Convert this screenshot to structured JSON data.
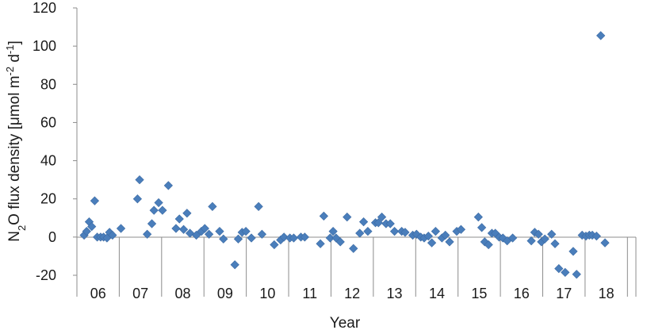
{
  "chart_data": {
    "type": "scatter",
    "xlabel": "Year",
    "ylabel": {
      "parts": [
        {
          "text": "N",
          "sub": false
        },
        {
          "text": "2",
          "sub": true
        },
        {
          "text": "O flux density [μmol m",
          "sub": false
        },
        {
          "text": "-2",
          "sup": true
        },
        {
          "text": " d",
          "sub": false
        },
        {
          "text": "-1",
          "sup": true
        },
        {
          "text": "]",
          "sub": false
        }
      ]
    },
    "ylim": [
      -20,
      120
    ],
    "yticks": [
      -20,
      0,
      20,
      40,
      60,
      80,
      100,
      120
    ],
    "xlim": [
      5.5,
      18.7
    ],
    "xticks": [
      {
        "value": 6,
        "label": "06"
      },
      {
        "value": 7,
        "label": "07"
      },
      {
        "value": 8,
        "label": "08"
      },
      {
        "value": 9,
        "label": "09"
      },
      {
        "value": 10,
        "label": "10"
      },
      {
        "value": 11,
        "label": "11"
      },
      {
        "value": 12,
        "label": "12"
      },
      {
        "value": 13,
        "label": "13"
      },
      {
        "value": 14,
        "label": "14"
      },
      {
        "value": 15,
        "label": "15"
      },
      {
        "value": 16,
        "label": "16"
      },
      {
        "value": 17,
        "label": "17"
      },
      {
        "value": 18,
        "label": "18"
      }
    ],
    "grid": false,
    "marker": "diamond",
    "marker_color": "#4a7ebb",
    "axis_color": "#8c8c8c",
    "points": [
      [
        5.67,
        1
      ],
      [
        5.73,
        3
      ],
      [
        5.79,
        8
      ],
      [
        5.85,
        5.5
      ],
      [
        5.92,
        19
      ],
      [
        5.98,
        0
      ],
      [
        6.06,
        0
      ],
      [
        6.13,
        0
      ],
      [
        6.21,
        -0.5
      ],
      [
        6.27,
        2.5
      ],
      [
        6.34,
        1
      ],
      [
        6.54,
        4.5
      ],
      [
        6.93,
        20
      ],
      [
        6.98,
        30
      ],
      [
        7.16,
        1.5
      ],
      [
        7.27,
        7
      ],
      [
        7.32,
        14
      ],
      [
        7.43,
        18
      ],
      [
        7.52,
        14
      ],
      [
        7.66,
        27
      ],
      [
        7.84,
        4.5
      ],
      [
        7.92,
        9.5
      ],
      [
        8.02,
        4
      ],
      [
        8.1,
        12.5
      ],
      [
        8.17,
        2
      ],
      [
        8.32,
        1
      ],
      [
        8.44,
        3
      ],
      [
        8.52,
        4.5
      ],
      [
        8.62,
        1.5
      ],
      [
        8.7,
        16
      ],
      [
        8.87,
        3
      ],
      [
        8.96,
        -1
      ],
      [
        9.23,
        -14.5
      ],
      [
        9.31,
        -1
      ],
      [
        9.4,
        2.5
      ],
      [
        9.49,
        3
      ],
      [
        9.62,
        -0.5
      ],
      [
        9.79,
        16
      ],
      [
        9.87,
        1.5
      ],
      [
        10.16,
        -4
      ],
      [
        10.31,
        -1.5
      ],
      [
        10.39,
        0
      ],
      [
        10.53,
        -0.5
      ],
      [
        10.62,
        -0.5
      ],
      [
        10.79,
        0
      ],
      [
        10.88,
        0
      ],
      [
        11.25,
        -3.5
      ],
      [
        11.33,
        11
      ],
      [
        11.48,
        -0.5
      ],
      [
        11.55,
        3
      ],
      [
        11.62,
        -0.5
      ],
      [
        11.72,
        -2.5
      ],
      [
        11.88,
        10.5
      ],
      [
        12.03,
        -6
      ],
      [
        12.18,
        2
      ],
      [
        12.27,
        8
      ],
      [
        12.37,
        3
      ],
      [
        12.55,
        7.5
      ],
      [
        12.62,
        7.5
      ],
      [
        12.7,
        10.5
      ],
      [
        12.8,
        7
      ],
      [
        12.9,
        7
      ],
      [
        13.0,
        3
      ],
      [
        13.17,
        3
      ],
      [
        13.25,
        2.5
      ],
      [
        13.43,
        1
      ],
      [
        13.52,
        1.5
      ],
      [
        13.62,
        0
      ],
      [
        13.7,
        -0.5
      ],
      [
        13.8,
        0.5
      ],
      [
        13.88,
        -3
      ],
      [
        13.97,
        3
      ],
      [
        14.12,
        -0.5
      ],
      [
        14.2,
        1
      ],
      [
        14.3,
        -2.5
      ],
      [
        14.47,
        3
      ],
      [
        14.57,
        4
      ],
      [
        14.98,
        10.5
      ],
      [
        15.06,
        5
      ],
      [
        15.13,
        -2.5
      ],
      [
        15.22,
        -4
      ],
      [
        15.3,
        2
      ],
      [
        15.38,
        2
      ],
      [
        15.47,
        0
      ],
      [
        15.56,
        -0.5
      ],
      [
        15.66,
        -2
      ],
      [
        15.79,
        -0.5
      ],
      [
        16.23,
        -2
      ],
      [
        16.31,
        2.5
      ],
      [
        16.4,
        1.5
      ],
      [
        16.47,
        -2.5
      ],
      [
        16.55,
        -1
      ],
      [
        16.71,
        1.5
      ],
      [
        16.79,
        -3.5
      ],
      [
        16.88,
        -16.5
      ],
      [
        17.03,
        -18.5
      ],
      [
        17.22,
        -7.5
      ],
      [
        17.3,
        -19.5
      ],
      [
        17.43,
        1
      ],
      [
        17.52,
        0.5
      ],
      [
        17.6,
        1
      ],
      [
        17.67,
        1
      ],
      [
        17.77,
        0.5
      ],
      [
        17.87,
        105.5
      ],
      [
        17.97,
        -3
      ]
    ]
  }
}
